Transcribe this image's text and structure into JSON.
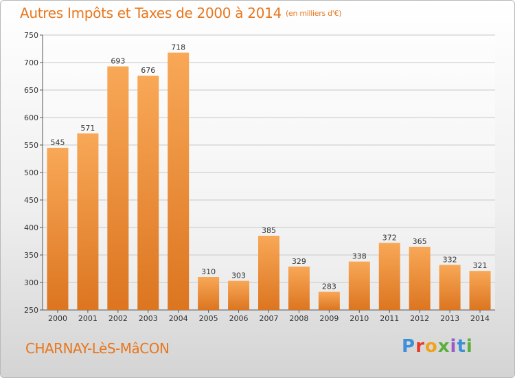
{
  "header": {
    "title": "Autres Impôts et Taxes de 2000 à 2014",
    "unit": "(en milliers d'€)"
  },
  "footer": {
    "commune": "CHARNAY-LèS-MâCON",
    "logo": [
      "P",
      "r",
      "o",
      "x",
      "i",
      "t",
      "i"
    ]
  },
  "colors": {
    "bar_light": "#f8a857",
    "bar_dark": "#dc7520",
    "title": "#e8761c"
  },
  "chart_data": {
    "type": "bar",
    "title": "Autres Impôts et Taxes de 2000 à 2014",
    "categories": [
      "2000",
      "2001",
      "2002",
      "2003",
      "2004",
      "2005",
      "2006",
      "2007",
      "2008",
      "2009",
      "2010",
      "2011",
      "2012",
      "2013",
      "2014"
    ],
    "values": [
      545,
      571,
      693,
      676,
      718,
      310,
      303,
      385,
      329,
      283,
      338,
      372,
      365,
      332,
      321
    ],
    "ylim": [
      250,
      750
    ],
    "yticks": [
      250,
      300,
      350,
      400,
      450,
      500,
      550,
      600,
      650,
      700,
      750
    ],
    "grid": true
  }
}
